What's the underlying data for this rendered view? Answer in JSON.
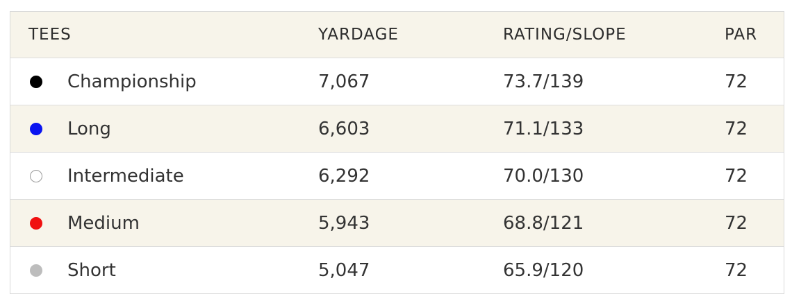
{
  "headers": {
    "tees": "TEES",
    "yardage": "YARDAGE",
    "rating_slope": "RATING/SLOPE",
    "par": "PAR"
  },
  "rows": [
    {
      "tee": "Championship",
      "marker_color": "#000000",
      "marker_border": "#000000",
      "yardage": "7,067",
      "rating_slope": "73.7/139",
      "par": "72"
    },
    {
      "tee": "Long",
      "marker_color": "#0a14f0",
      "marker_border": "#0a14f0",
      "yardage": "6,603",
      "rating_slope": "71.1/133",
      "par": "72"
    },
    {
      "tee": "Intermediate",
      "marker_color": "#ffffff",
      "marker_border": "#9a9a9a",
      "yardage": "6,292",
      "rating_slope": "70.0/130",
      "par": "72"
    },
    {
      "tee": "Medium",
      "marker_color": "#f01010",
      "marker_border": "#f01010",
      "yardage": "5,943",
      "rating_slope": "68.8/121",
      "par": "72"
    },
    {
      "tee": "Short",
      "marker_color": "#bdbdbd",
      "marker_border": "#bdbdbd",
      "yardage": "5,047",
      "rating_slope": "65.9/120",
      "par": "72"
    }
  ]
}
